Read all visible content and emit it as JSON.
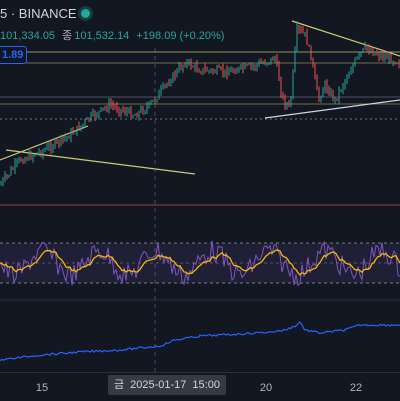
{
  "header": {
    "symbol_text": "5 · BINANCE",
    "ohlc": {
      "low_value": "101,334.05",
      "close_label": "종",
      "close_value": "101,532.14",
      "change": "+198.09 (+0.20%)"
    },
    "price_tag": "1.89"
  },
  "time_axis": {
    "ticks": [
      {
        "label": "15"
      },
      {
        "label": "20"
      },
      {
        "label": "22"
      }
    ],
    "crosshair": {
      "day": "금",
      "date": "2025-01-17",
      "time": "15:00"
    }
  },
  "colors": {
    "background": "#131722",
    "up": "#26a69a",
    "down": "#ef5350",
    "trendline": "#c9c97a",
    "rsi": "#7e57c2",
    "rsi_ma": "#f5b800",
    "obv": "#2962ff",
    "crosshair_tag": "#363a45"
  },
  "icons": {
    "live": "status-dot-icon"
  }
}
